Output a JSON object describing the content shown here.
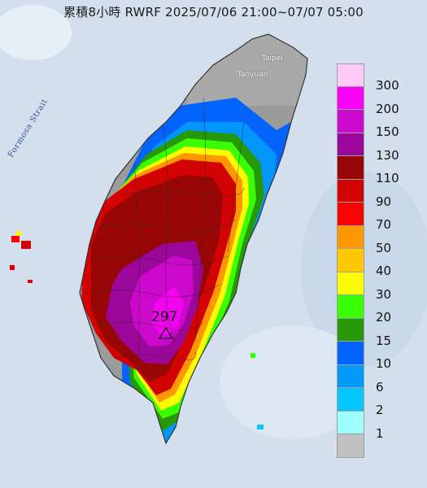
{
  "title": "累積8小時 RWRF 2025/07/06 21:00~07/07 05:00",
  "strait_label": "Formosa Strait",
  "places": {
    "taipei": "Taipei",
    "taoyuan": "Taoyuan"
  },
  "max_marker": {
    "value": "297",
    "icon": "triangle-icon"
  },
  "legend": [
    {
      "label": "300",
      "color": "#fdc9f5"
    },
    {
      "label": "200",
      "color": "#f902f5"
    },
    {
      "label": "150",
      "color": "#cc08cc"
    },
    {
      "label": "130",
      "color": "#9b079b"
    },
    {
      "label": "110",
      "color": "#980606"
    },
    {
      "label": "90",
      "color": "#d30303"
    },
    {
      "label": "70",
      "color": "#fd0202"
    },
    {
      "label": "50",
      "color": "#fd9801"
    },
    {
      "label": "40",
      "color": "#fec700"
    },
    {
      "label": "30",
      "color": "#fefc02"
    },
    {
      "label": "20",
      "color": "#38fd03"
    },
    {
      "label": "15",
      "color": "#279806"
    },
    {
      "label": "10",
      "color": "#0364fd"
    },
    {
      "label": "6",
      "color": "#029bfd"
    },
    {
      "label": "2",
      "color": "#04c8fd"
    },
    {
      "label": "1",
      "color": "#9ffefe"
    },
    {
      "label": "",
      "color": "#c0c0c0"
    }
  ]
}
